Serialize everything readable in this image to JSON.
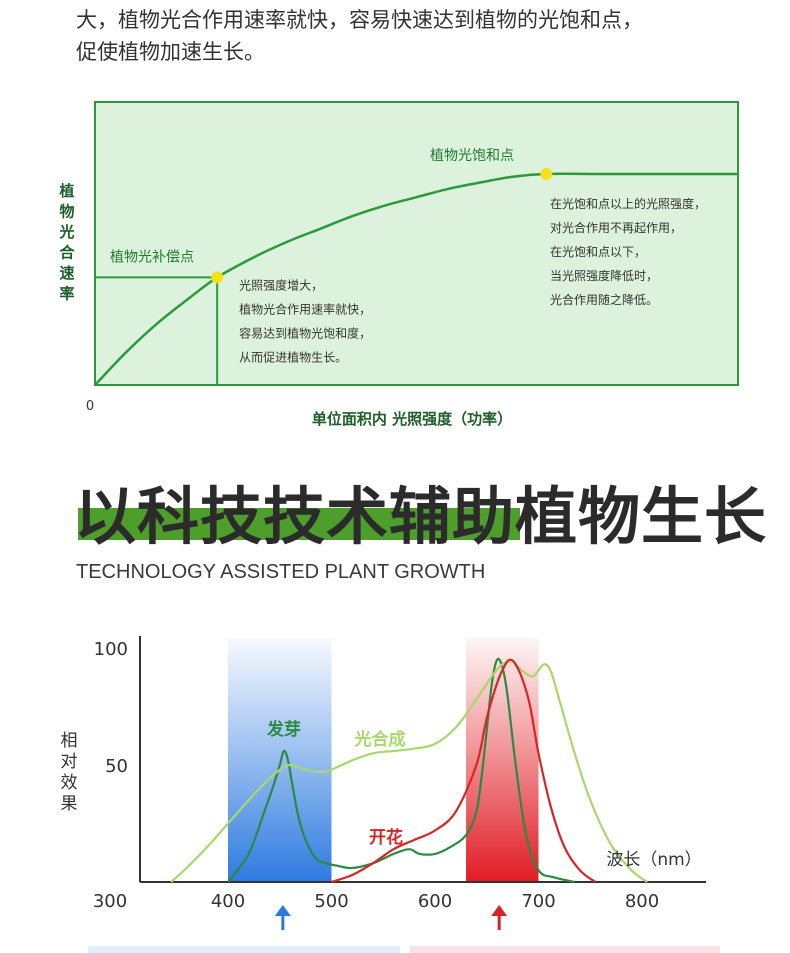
{
  "intro": {
    "line1": "大，植物光合作用速率就快，容易快速达到植物的光饱和点，",
    "line2": "促使植物加速生长。"
  },
  "chart_data": [
    {
      "type": "line",
      "xlabel": "单位面积内 光照强度（功率）",
      "ylabel": "植物光合速率",
      "origin_label": "0",
      "series": [
        {
          "points": [
            [
              0,
              0
            ],
            [
              0.05,
              0.16
            ],
            [
              0.1,
              0.3
            ],
            [
              0.15,
              0.42
            ],
            [
              0.19,
              0.51
            ],
            [
              0.25,
              0.61
            ],
            [
              0.3,
              0.68
            ],
            [
              0.35,
              0.74
            ],
            [
              0.4,
              0.8
            ],
            [
              0.45,
              0.85
            ],
            [
              0.5,
              0.89
            ],
            [
              0.55,
              0.93
            ],
            [
              0.6,
              0.96
            ],
            [
              0.65,
              0.987
            ],
            [
              0.702,
              1.0
            ],
            [
              0.8,
              1.0
            ],
            [
              1.0,
              1.0
            ]
          ]
        }
      ],
      "annotations": {
        "compensation_point": {
          "label": "植物光补偿点",
          "x": 0.19,
          "y": 0.51,
          "marker_color": "#f5e21c",
          "notes": [
            "光照强度增大，",
            "植物光合作用速率就快，",
            "容易达到植物光饱和度，",
            "从而促进植物生长。"
          ]
        },
        "saturation_point": {
          "label": "植物光饱和点",
          "x": 0.702,
          "y": 1.0,
          "marker_color": "#f5e21c",
          "notes": [
            "在光饱和点以上的光照强度，",
            "对光合作用不再起作用，",
            "在光饱和点以下，",
            "当光照强度降低时，",
            "光合作用随之降低。"
          ]
        }
      },
      "colors": {
        "line": "#2a9a3a",
        "background": "#ddf2dd",
        "text": "#1e7a2e",
        "axis_label": "#1e5e28"
      }
    },
    {
      "type": "line",
      "xlabel": "波长（nm）",
      "ylabel": "相对效果",
      "x_ticks": [
        300,
        400,
        500,
        600,
        700,
        800
      ],
      "y_ticks": [
        50,
        100
      ],
      "xlim": [
        300,
        850
      ],
      "ylim": [
        0,
        110
      ],
      "bands": [
        {
          "range": [
            400,
            500
          ],
          "color": "#2a78e0",
          "arrow_at": 453,
          "arrow_color": "#2a78e0"
        },
        {
          "range": [
            630,
            700
          ],
          "color": "#e01820",
          "arrow_at": 662,
          "arrow_color": "#d92128"
        }
      ],
      "series": [
        {
          "name": "发芽",
          "color": "#2a8a44",
          "x": [
            400,
            420,
            435,
            443,
            450,
            454,
            458,
            462,
            468,
            475,
            485,
            495,
            505,
            520,
            540,
            560,
            575,
            585,
            600,
            615,
            630,
            640,
            645,
            650,
            655,
            660,
            665,
            670,
            678,
            688,
            700,
            715,
            735
          ],
          "y": [
            0,
            12,
            30,
            40,
            50,
            56,
            52,
            42,
            28,
            18,
            10,
            8,
            7,
            6,
            8,
            12,
            14,
            12,
            12,
            15,
            20,
            30,
            45,
            65,
            85,
            95,
            92,
            80,
            50,
            20,
            5,
            2,
            0
          ]
        },
        {
          "name": "光合成",
          "color": "#a8d86c",
          "x": [
            345,
            360,
            380,
            400,
            420,
            435,
            450,
            460,
            475,
            490,
            500,
            520,
            540,
            560,
            580,
            600,
            620,
            640,
            655,
            665,
            675,
            685,
            695,
            705,
            712,
            720,
            735,
            750,
            770,
            790,
            805
          ],
          "y": [
            0,
            6,
            15,
            25,
            35,
            42,
            48,
            50,
            48,
            47,
            48,
            52,
            55,
            56,
            57,
            59,
            66,
            78,
            88,
            93,
            94,
            90,
            88,
            93,
            90,
            78,
            55,
            35,
            16,
            5,
            0
          ]
        },
        {
          "name": "开花",
          "color": "#d62626",
          "x": [
            500,
            520,
            540,
            560,
            580,
            600,
            620,
            640,
            650,
            660,
            668,
            673,
            678,
            685,
            692,
            700,
            712,
            725,
            740,
            755
          ],
          "y": [
            0,
            3,
            8,
            14,
            18,
            22,
            30,
            50,
            70,
            85,
            93,
            95,
            93,
            86,
            75,
            55,
            32,
            15,
            5,
            0
          ]
        }
      ]
    }
  ],
  "heading": {
    "title": "以科技技术辅助植物生长",
    "subtitle": "TECHNOLOGY ASSISTED PLANT GROWTH",
    "bar_color": "#4e9e2c"
  }
}
